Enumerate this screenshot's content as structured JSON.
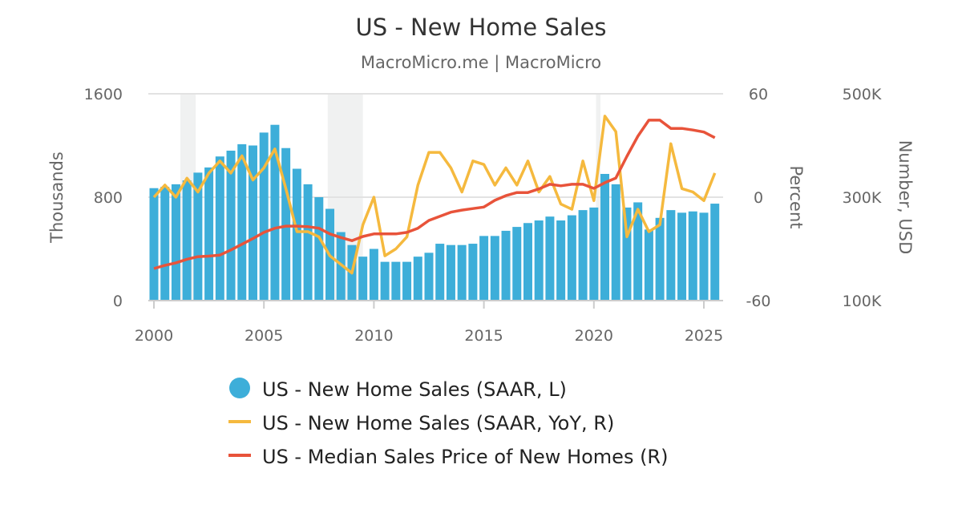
{
  "chart_data": {
    "type": "bar+line",
    "title": "US - New Home Sales",
    "subtitle": "MacroMicro.me | MacroMicro",
    "y_left": {
      "label": "Thousands",
      "range": [
        0,
        1600
      ],
      "ticks": [
        "0",
        "800",
        "1600"
      ]
    },
    "y_right1": {
      "label": "Percent",
      "range": [
        -60,
        60
      ],
      "ticks": [
        "-60",
        "0",
        "60"
      ]
    },
    "y_right2": {
      "label": "Number, USD",
      "range": [
        100,
        500
      ],
      "ticks": [
        "100K",
        "300K",
        "500K"
      ]
    },
    "x_ticks": [
      "2000",
      "2005",
      "2010",
      "2015",
      "2020",
      "2025"
    ],
    "x_range": [
      2000,
      2025.6
    ],
    "grid": true,
    "legend_position": "bottom",
    "recessions": [
      [
        2001.2,
        2001.9
      ],
      [
        2007.9,
        2009.5
      ],
      [
        2020.1,
        2020.3
      ]
    ],
    "x": [
      2000,
      2000.5,
      2001,
      2001.5,
      2002,
      2002.5,
      2003,
      2003.5,
      2004,
      2004.5,
      2005,
      2005.5,
      2006,
      2006.5,
      2007,
      2007.5,
      2008,
      2008.5,
      2009,
      2009.5,
      2010,
      2010.5,
      2011,
      2011.5,
      2012,
      2012.5,
      2013,
      2013.5,
      2014,
      2014.5,
      2015,
      2015.5,
      2016,
      2016.5,
      2017,
      2017.5,
      2018,
      2018.5,
      2019,
      2019.5,
      2020,
      2020.5,
      2021,
      2021.5,
      2022,
      2022.5,
      2023,
      2023.5,
      2024,
      2024.5,
      2025,
      2025.5
    ],
    "series": [
      {
        "name": "US - New Home Sales (SAAR, L)",
        "type": "bar",
        "axis": "left",
        "color": "#3daed9",
        "values": [
          870,
          880,
          900,
          930,
          990,
          1030,
          1115,
          1160,
          1210,
          1200,
          1300,
          1360,
          1180,
          1020,
          900,
          800,
          710,
          530,
          430,
          340,
          400,
          300,
          300,
          300,
          340,
          370,
          440,
          430,
          430,
          440,
          500,
          500,
          540,
          570,
          600,
          620,
          650,
          620,
          660,
          700,
          720,
          980,
          900,
          720,
          760,
          550,
          640,
          700,
          680,
          690,
          680,
          750
        ]
      },
      {
        "name": "US - New Home Sales (SAAR, YoY, R)",
        "type": "line",
        "axis": "right1",
        "color": "#f5b93e",
        "values": [
          0,
          7,
          0,
          11,
          3,
          14,
          21,
          14,
          24,
          10,
          17,
          28,
          5,
          -20,
          -20,
          -23,
          -34,
          -39,
          -44,
          -16,
          0,
          -34,
          -30,
          -23,
          7,
          26,
          26,
          17,
          3,
          21,
          19,
          7,
          17,
          7,
          21,
          3,
          12,
          -4,
          -7,
          21,
          -2,
          47,
          38,
          -23,
          -7,
          -20,
          -16,
          31,
          5,
          3,
          -2,
          14
        ]
      },
      {
        "name": "US - Median Sales Price of New Homes (R)",
        "type": "line",
        "axis": "right2",
        "color": "#e8533a",
        "values": [
          162,
          168,
          173,
          180,
          185,
          186,
          188,
          198,
          209,
          220,
          232,
          240,
          244,
          244,
          243,
          240,
          229,
          222,
          216,
          224,
          229,
          229,
          229,
          232,
          240,
          255,
          263,
          271,
          275,
          278,
          281,
          294,
          303,
          309,
          309,
          316,
          325,
          322,
          325,
          325,
          317,
          328,
          337,
          379,
          418,
          449,
          449,
          433,
          433,
          430,
          426,
          415
        ]
      }
    ]
  }
}
